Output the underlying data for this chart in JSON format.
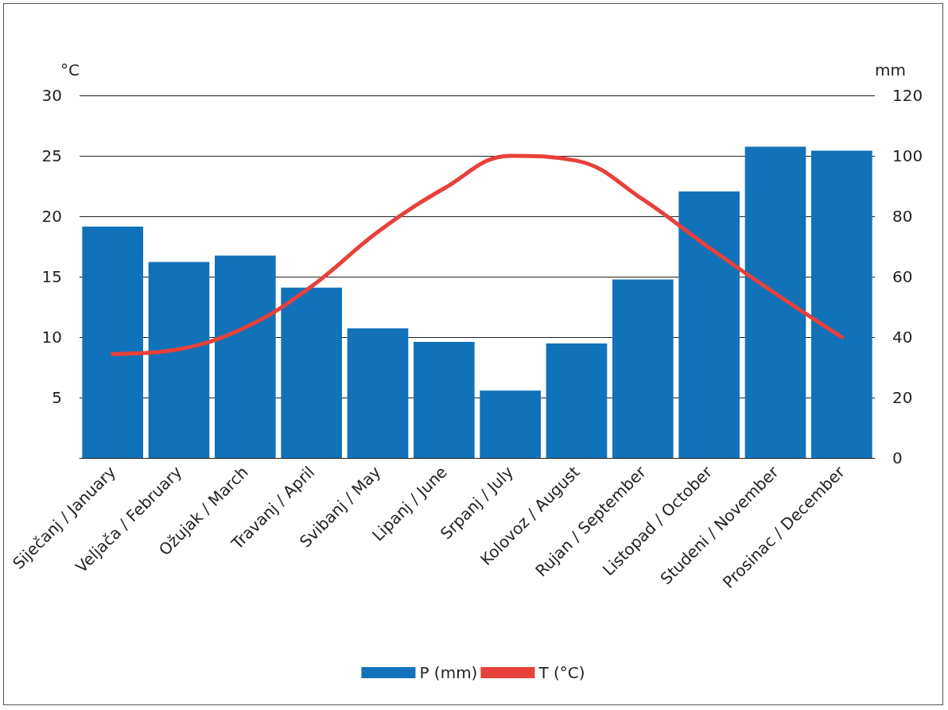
{
  "chart_data": {
    "type": "bar",
    "ylabel": "°C",
    "y2label": "mm",
    "categories": [
      "Siječanj / January",
      "Veljača / February",
      "Ožujak / March",
      "Travanj / April",
      "Svibanj / May",
      "Lipanj / June",
      "Srpanj / July",
      "Kolovoz / August",
      "Rujan / September",
      "Listopad / October",
      "Studeni / November",
      "Prosinac / December"
    ],
    "series": [
      {
        "name": "P (mm)",
        "axis": "y2",
        "color": "#1172b9",
        "values": [
          76.6,
          64.9,
          67.0,
          56.4,
          42.9,
          38.4,
          22.3,
          37.9,
          59.1,
          88.2,
          103.0,
          101.7
        ]
      },
      {
        "name": "T (°C)",
        "type": "line",
        "color": "#e8403a",
        "values": [
          8.6,
          9.0,
          10.8,
          14.2,
          18.7,
          22.3,
          25.0,
          24.6,
          21.4,
          17.4,
          13.6,
          10.0
        ]
      }
    ],
    "ylim": [
      0,
      30
    ],
    "yticks": [
      {
        "value": 0,
        "label": null
      },
      5,
      10,
      15,
      20,
      25,
      30
    ],
    "y2lim": [
      0,
      120
    ],
    "y2ticks": [
      0,
      20,
      40,
      60,
      80,
      100,
      120
    ],
    "grid": "y",
    "legend": "bottom",
    "marker": "none",
    "line_style": "solid"
  }
}
